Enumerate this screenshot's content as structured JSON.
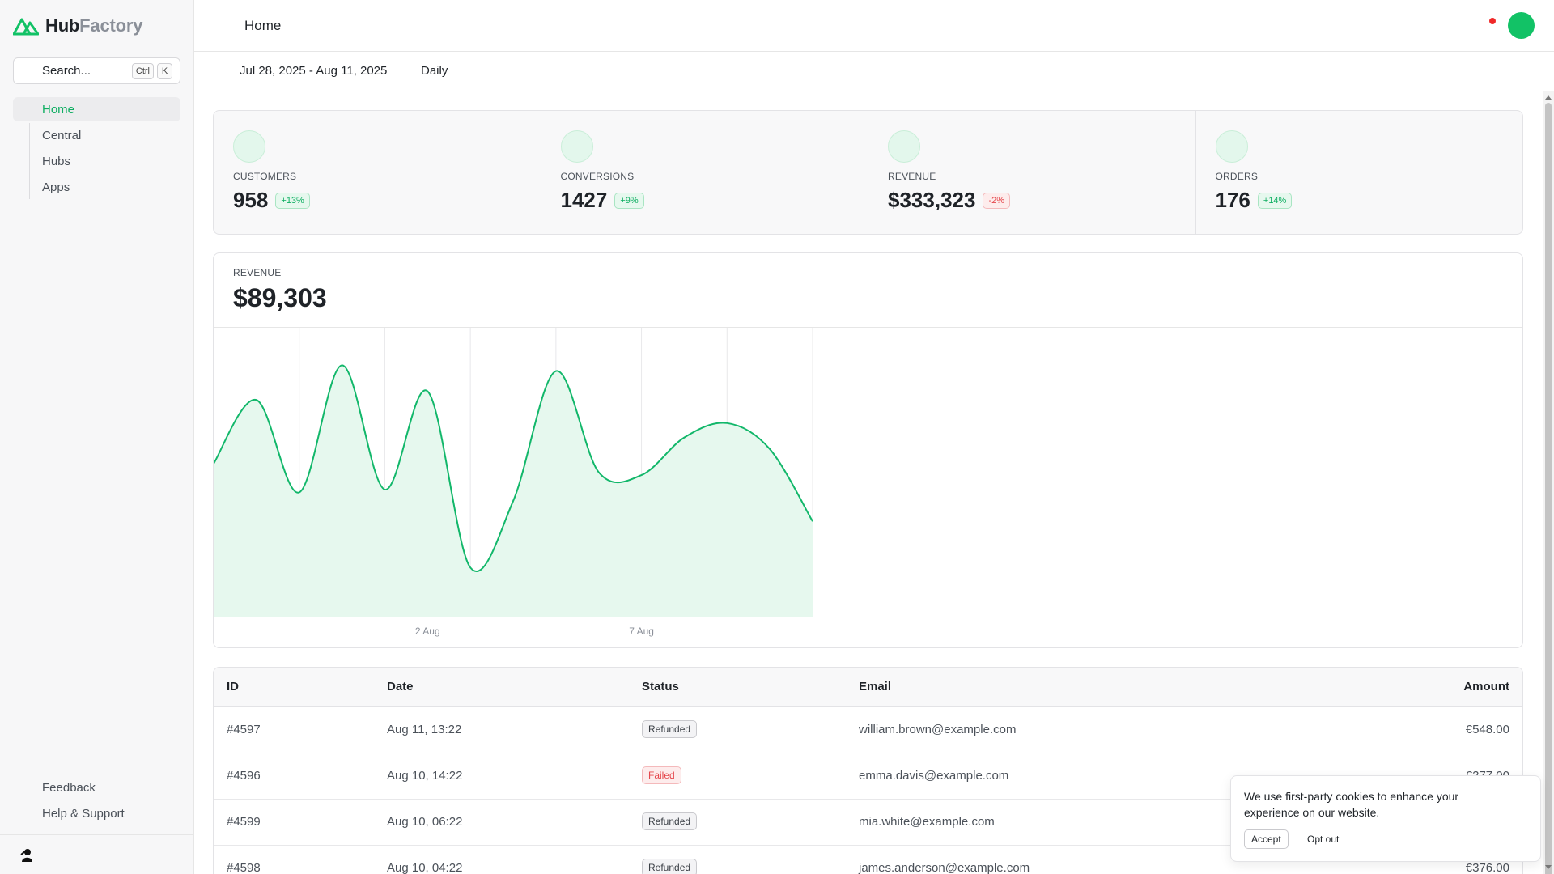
{
  "brand": {
    "name_part1": "Hub",
    "name_part2": "Factory"
  },
  "search": {
    "placeholder": "Search...",
    "shortcut_mod": "Ctrl",
    "shortcut_key": "K"
  },
  "nav": {
    "items": [
      {
        "label": "Home"
      },
      {
        "label": "Central"
      },
      {
        "label": "Hubs"
      },
      {
        "label": "Apps"
      }
    ],
    "bottom": [
      {
        "label": "Feedback"
      },
      {
        "label": "Help & Support"
      }
    ]
  },
  "header": {
    "title": "Home"
  },
  "toolbar": {
    "date_range": "Jul 28, 2025 - Aug 11, 2025",
    "period": "Daily"
  },
  "stats": [
    {
      "label": "CUSTOMERS",
      "value": "958",
      "change": "+13%"
    },
    {
      "label": "CONVERSIONS",
      "value": "1427",
      "change": "+9%"
    },
    {
      "label": "REVENUE",
      "value": "$333,323",
      "change": "-2%"
    },
    {
      "label": "ORDERS",
      "value": "176",
      "change": "+14%"
    }
  ],
  "revenue_card": {
    "label": "REVENUE",
    "value": "$89,303"
  },
  "chart_data": {
    "type": "area",
    "x": [
      "Jul 28",
      "Jul 29",
      "Jul 30",
      "Jul 31",
      "Aug 1",
      "Aug 2",
      "Aug 3",
      "Aug 4",
      "Aug 5",
      "Aug 6",
      "Aug 7",
      "Aug 8",
      "Aug 9",
      "Aug 10",
      "Aug 11"
    ],
    "y": [
      53,
      75,
      43,
      87,
      44,
      78,
      17,
      40,
      85,
      50,
      49,
      62,
      67,
      58,
      33
    ],
    "ylim": [
      0,
      100
    ],
    "tick_labels": [
      {
        "x": "Aug 2",
        "label": "2 Aug"
      },
      {
        "x": "Aug 7",
        "label": "7 Aug"
      }
    ],
    "color": "#12b76a",
    "fill": "#e6f8ee",
    "grid": true
  },
  "table": {
    "columns": [
      "ID",
      "Date",
      "Status",
      "Email",
      "Amount"
    ],
    "rows": [
      {
        "id": "#4597",
        "date": "Aug 11, 13:22",
        "status": "Refunded",
        "email": "william.brown@example.com",
        "amount": "€548.00"
      },
      {
        "id": "#4596",
        "date": "Aug 10, 14:22",
        "status": "Failed",
        "email": "emma.davis@example.com",
        "amount": "€277.00"
      },
      {
        "id": "#4599",
        "date": "Aug 10, 06:22",
        "status": "Refunded",
        "email": "mia.white@example.com",
        "amount": ""
      },
      {
        "id": "#4598",
        "date": "Aug 10, 04:22",
        "status": "Refunded",
        "email": "james.anderson@example.com",
        "amount": "€376.00"
      }
    ]
  },
  "cookie": {
    "message": "We use first-party cookies to enhance your experience on our website.",
    "accept": "Accept",
    "opt_out": "Opt out"
  },
  "colors": {
    "accent": "#12c266",
    "danger": "#e5484d"
  }
}
